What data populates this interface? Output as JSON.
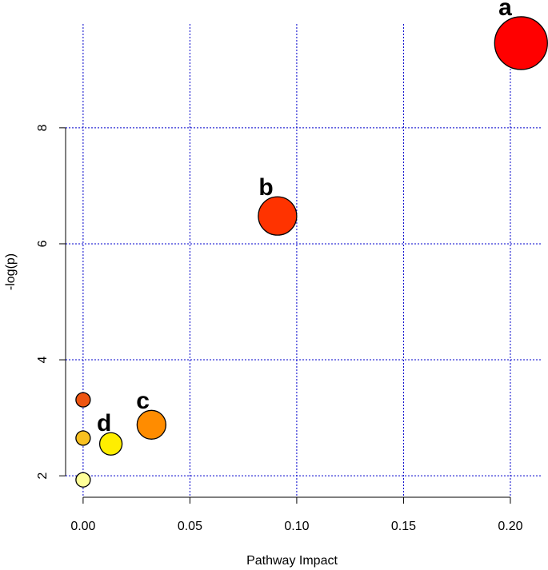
{
  "chart_data": {
    "type": "bubble",
    "x_label": "Pathway Impact",
    "y_label": "-log(p)",
    "x": [
      0.205,
      0.091,
      0.032,
      0.013,
      0,
      0,
      0
    ],
    "values": [
      9.46,
      6.48,
      2.88,
      2.55,
      3.31,
      2.65,
      1.93
    ],
    "sizes": [
      33,
      24,
      18,
      14,
      9,
      9,
      9
    ],
    "colors": [
      "#ff0000",
      "#ff3300",
      "#ff8c00",
      "#ffee00",
      "#ee5511",
      "#f8c020",
      "#ffff99"
    ],
    "point_labels": [
      "a",
      "b",
      "c",
      "d",
      null,
      null,
      null
    ],
    "xlim": [
      -0.0082,
      0.215
    ],
    "ylim": [
      1.63,
      9.79
    ],
    "xticks": [
      {
        "value": 0,
        "label": "0.00"
      },
      {
        "value": 0.05,
        "label": "0.05"
      },
      {
        "value": 0.1,
        "label": "0.10"
      },
      {
        "value": 0.15,
        "label": "0.15"
      },
      {
        "value": 0.2,
        "label": "0.20"
      }
    ],
    "yticks": [
      2,
      4,
      6,
      8
    ],
    "grid": true,
    "grid_color": "#0000cc"
  }
}
